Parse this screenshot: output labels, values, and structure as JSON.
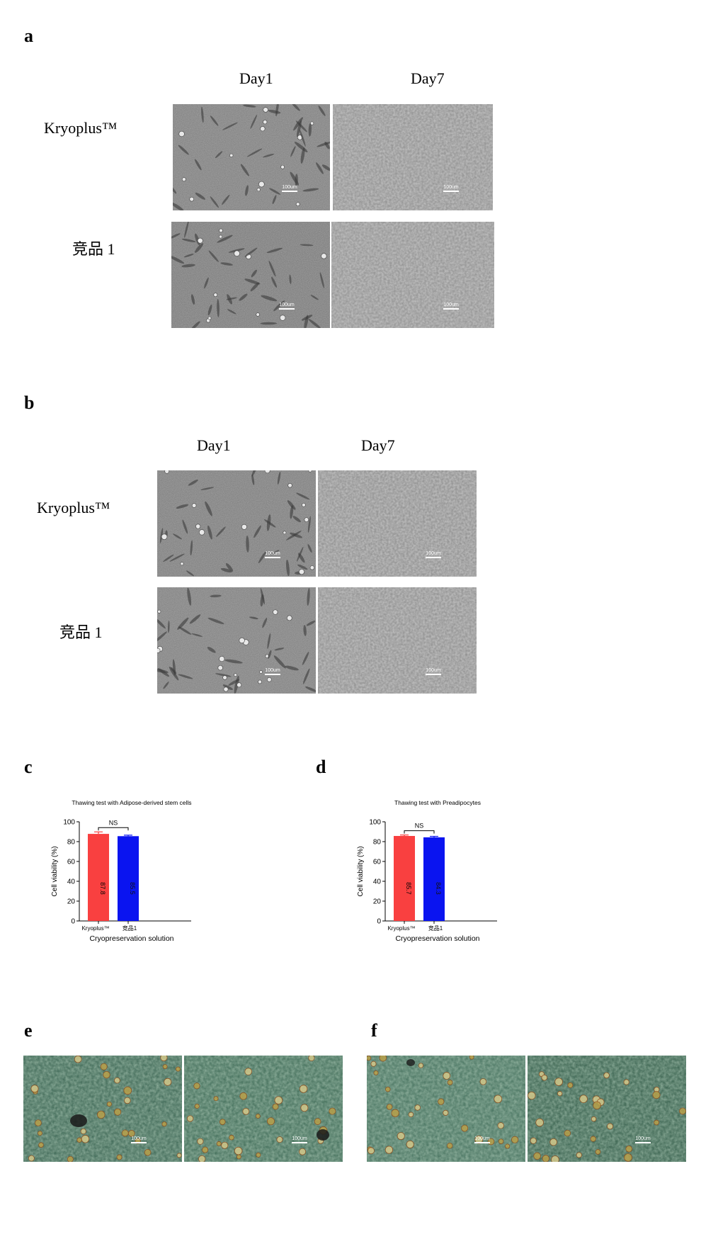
{
  "panels": {
    "a": {
      "letter": "a",
      "col1": "Day1",
      "col2": "Day7",
      "row1": "Kryoplus™",
      "row2": "竞品 1",
      "scale_label": "100um"
    },
    "b": {
      "letter": "b",
      "col1": "Day1",
      "col2": "Day7",
      "row1": "Kryoplus™",
      "row2": "竞品 1",
      "scale_label": "100um"
    },
    "c": {
      "letter": "c"
    },
    "d": {
      "letter": "d"
    },
    "e": {
      "letter": "e",
      "scale_label": "100um"
    },
    "f": {
      "letter": "f",
      "scale_label": "100um"
    }
  },
  "colors": {
    "kryoplus_bar": "#f94040",
    "competitor_bar": "#0a14f0",
    "micro_gray": "#8a8a8a",
    "micro_green": "#3f6b55"
  },
  "chart_data": [
    {
      "type": "bar",
      "title": "Thawing test with Adipose-derived stem cells",
      "categories": [
        "Kryoplus™",
        "竞品1"
      ],
      "values": [
        87.8,
        85.5
      ],
      "value_labels": [
        "87.8",
        "85.5"
      ],
      "errors": [
        2.0,
        1.0
      ],
      "xlabel": "Cryopreservation solution",
      "ylabel": "Cell viability (%)",
      "ylim": [
        0,
        100
      ],
      "yticks": [
        "0",
        "20",
        "40",
        "60",
        "80",
        "100"
      ],
      "significance": "NS",
      "colors": [
        "#f94040",
        "#0a14f0"
      ]
    },
    {
      "type": "bar",
      "title": "Thawing test with Preadipocytes",
      "categories": [
        "Kryoplus™",
        "竞品1"
      ],
      "values": [
        85.7,
        84.3
      ],
      "value_labels": [
        "85.7",
        "84.3"
      ],
      "errors": [
        1.0,
        1.0
      ],
      "xlabel": "Cryopreservation solution",
      "ylabel": "Cell viability (%)",
      "ylim": [
        0,
        100
      ],
      "yticks": [
        "0",
        "20",
        "40",
        "60",
        "80",
        "100"
      ],
      "significance": "NS",
      "colors": [
        "#f94040",
        "#0a14f0"
      ]
    }
  ]
}
